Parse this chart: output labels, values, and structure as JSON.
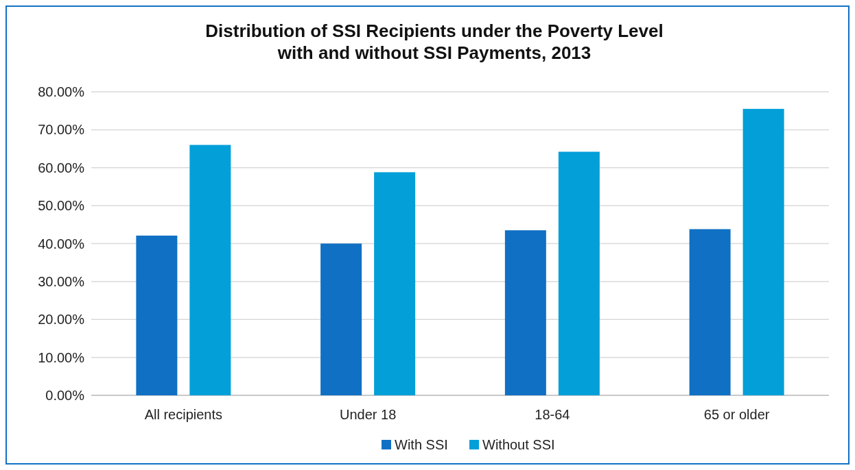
{
  "chart_data": {
    "type": "bar",
    "title": "Distribution of SSI Recipients under the Poverty Level\nwith and without SSI Payments, 2013",
    "categories": [
      "All recipients",
      "Under 18",
      "18-64",
      "65 or older"
    ],
    "series": [
      {
        "name": "With SSI",
        "color": "#1070c4",
        "values": [
          42.1,
          40.0,
          43.5,
          43.8
        ]
      },
      {
        "name": "Without SSI",
        "color": "#039fd9",
        "values": [
          66.0,
          58.8,
          64.2,
          75.5
        ]
      }
    ],
    "ylim": [
      0,
      80
    ],
    "yticks": [
      {
        "value": 0,
        "label": "0.00%"
      },
      {
        "value": 10,
        "label": "10.00%"
      },
      {
        "value": 20,
        "label": "20.00%"
      },
      {
        "value": 30,
        "label": "30.00%"
      },
      {
        "value": 40,
        "label": "40.00%"
      },
      {
        "value": 50,
        "label": "50.00%"
      },
      {
        "value": 60,
        "label": "60.00%"
      },
      {
        "value": 70,
        "label": "70.00%"
      },
      {
        "value": 80,
        "label": "80.00%"
      }
    ],
    "grid": "y",
    "legend": "bottom"
  }
}
